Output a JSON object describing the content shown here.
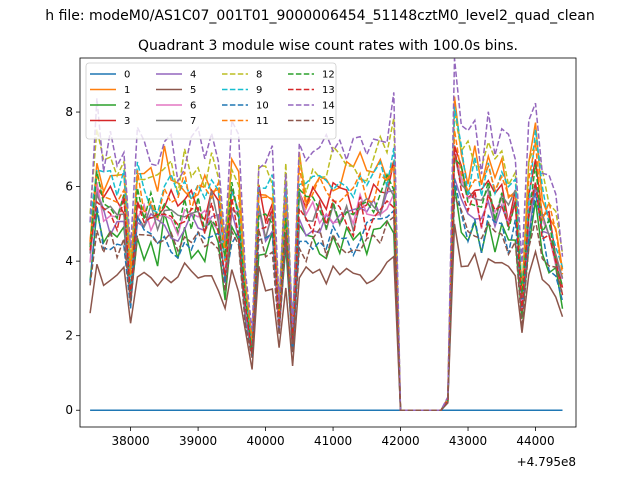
{
  "suptitle": "h file: modeM0/AS1C07_001T01_9000006454_51148cztM0_level2_quad_clean",
  "chart_data": {
    "type": "line",
    "title": "Quadrant 3 module wise count rates with 100.0s bins.",
    "xlabel": "",
    "ylabel": "",
    "x_offset_label": "+4.795e8",
    "xlim": [
      37250,
      44600
    ],
    "ylim": [
      -0.45,
      9.45
    ],
    "xticks": [
      38000,
      39000,
      40000,
      41000,
      42000,
      43000,
      44000
    ],
    "xtick_labels": [
      "38000",
      "39000",
      "40000",
      "41000",
      "42000",
      "43000",
      "44000"
    ],
    "yticks": [
      0,
      2,
      4,
      6,
      8
    ],
    "ytick_labels": [
      "0",
      "2",
      "4",
      "6",
      "8"
    ],
    "legend_location": "upper left",
    "legend_ncol": 4,
    "gap_segment": {
      "x": [
        42100,
        42200,
        42300,
        42400,
        42500,
        42600,
        42700
      ],
      "description_hidden": true
    },
    "series": [
      {
        "name": "0",
        "color": "#1f77b4",
        "dash": "solid",
        "base": 0.0,
        "amp": 0.0
      },
      {
        "name": "1",
        "color": "#ff7f0e",
        "dash": "solid",
        "base": 6.1,
        "amp": 0.55
      },
      {
        "name": "2",
        "color": "#2ca02c",
        "dash": "solid",
        "base": 4.5,
        "amp": 0.45
      },
      {
        "name": "3",
        "color": "#d62728",
        "dash": "solid",
        "base": 5.5,
        "amp": 0.5
      },
      {
        "name": "4",
        "color": "#9467bd",
        "dash": "solid",
        "base": 5.0,
        "amp": 0.45
      },
      {
        "name": "5",
        "color": "#8c564b",
        "dash": "solid",
        "base": 3.6,
        "amp": 0.35
      },
      {
        "name": "6",
        "color": "#e377c2",
        "dash": "solid",
        "base": 5.2,
        "amp": 0.45
      },
      {
        "name": "7",
        "color": "#7f7f7f",
        "dash": "solid",
        "base": 5.3,
        "amp": 0.45
      },
      {
        "name": "8",
        "color": "#bcbd22",
        "dash": "dashed",
        "base": 6.4,
        "amp": 0.55
      },
      {
        "name": "9",
        "color": "#17becf",
        "dash": "dashed",
        "base": 5.9,
        "amp": 0.5
      },
      {
        "name": "10",
        "color": "#1f77b4",
        "dash": "dashed",
        "base": 4.6,
        "amp": 0.45
      },
      {
        "name": "11",
        "color": "#ff7f0e",
        "dash": "dashed",
        "base": 5.8,
        "amp": 0.5
      },
      {
        "name": "12",
        "color": "#2ca02c",
        "dash": "dashed",
        "base": 5.4,
        "amp": 0.5
      },
      {
        "name": "13",
        "color": "#d62728",
        "dash": "dashed",
        "base": 5.1,
        "amp": 0.45
      },
      {
        "name": "14",
        "color": "#9467bd",
        "dash": "dashed",
        "base": 7.0,
        "amp": 0.7
      },
      {
        "name": "15",
        "color": "#8c564b",
        "dash": "dashed",
        "base": 4.4,
        "amp": 0.4
      }
    ],
    "x": [
      37400,
      37500,
      37600,
      37700,
      37800,
      37900,
      38000,
      38100,
      38200,
      38300,
      38400,
      38500,
      38600,
      38700,
      38800,
      38900,
      39000,
      39100,
      39200,
      39300,
      39400,
      39500,
      39600,
      39700,
      39800,
      39900,
      40000,
      40100,
      40200,
      40300,
      40400,
      40500,
      40600,
      40700,
      40800,
      40900,
      41000,
      41100,
      41200,
      41300,
      41400,
      41500,
      41600,
      41700,
      41800,
      41900,
      42000,
      42100,
      42200,
      42300,
      42400,
      42500,
      42600,
      42700,
      42800,
      42900,
      43000,
      43100,
      43200,
      43300,
      43400,
      43500,
      43600,
      43700,
      43800,
      43900,
      44000,
      44100,
      44200,
      44300,
      44400
    ],
    "profile": [
      0.8,
      1.1,
      1.0,
      1.02,
      0.97,
      1.05,
      0.6,
      1.05,
      0.98,
      1.0,
      0.95,
      1.08,
      1.0,
      0.97,
      1.02,
      0.99,
      1.01,
      0.96,
      1.03,
      0.98,
      0.7,
      1.05,
      0.97,
      0.55,
      0.3,
      1.02,
      0.95,
      1.0,
      0.45,
      1.0,
      0.35,
      1.05,
      0.98,
      1.0,
      1.02,
      0.97,
      1.05,
      1.0,
      1.03,
      0.99,
      1.05,
      1.0,
      1.04,
      1.07,
      1.1,
      1.15,
      0.0,
      0.0,
      0.0,
      0.0,
      0.0,
      0.0,
      0.0,
      0.05,
      1.3,
      1.15,
      1.05,
      1.08,
      1.0,
      1.06,
      1.02,
      1.04,
      0.98,
      1.05,
      0.55,
      1.02,
      1.2,
      0.95,
      0.9,
      0.8,
      0.65
    ]
  }
}
